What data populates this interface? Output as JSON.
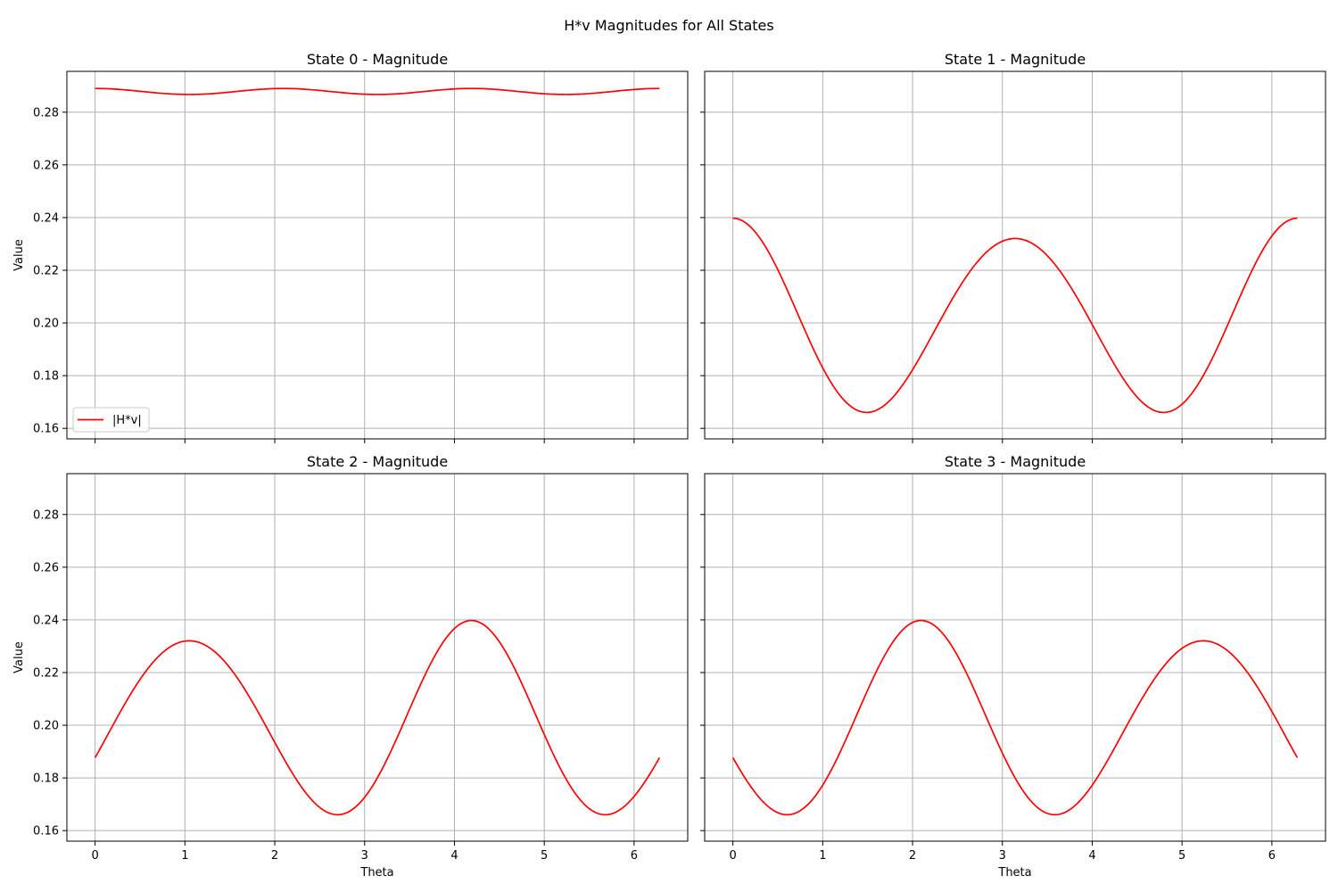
{
  "figure": {
    "title": "H*v Magnitudes for All States"
  },
  "chart_data": [
    {
      "type": "line",
      "title": "State 0 - Magnitude",
      "xlabel": "",
      "ylabel": "Value",
      "xlim": [
        -0.314,
        6.597
      ],
      "ylim": [
        0.156,
        0.2955
      ],
      "xticks": [
        0,
        1,
        2,
        3,
        4,
        5,
        6
      ],
      "yticks": [
        0.16,
        0.18,
        0.2,
        0.22,
        0.24,
        0.26,
        0.28
      ],
      "grid": true,
      "legend": {
        "show": true,
        "placement": "lower-left"
      },
      "series": [
        {
          "name": "|H*v|",
          "color": "#ff0000",
          "formula": {
            "mean": 0.28786,
            "amp": 0.00114,
            "freq": 3,
            "phase": 0
          }
        }
      ]
    },
    {
      "type": "line",
      "title": "State 1 - Magnitude",
      "xlabel": "",
      "ylabel": "",
      "xlim": [
        -0.314,
        6.597
      ],
      "ylim": [
        0.156,
        0.2955
      ],
      "xticks": [
        0,
        1,
        2,
        3,
        4,
        5,
        6
      ],
      "yticks": [
        0.16,
        0.18,
        0.2,
        0.22,
        0.24,
        0.26,
        0.28
      ],
      "grid": true,
      "legend": {
        "show": false
      },
      "series": [
        {
          "color": "#ff0000",
          "formula": {
            "mean": 0.2012,
            "amp": 0.0347,
            "freq": 2,
            "phase": 0,
            "amp3": 0.00385
          }
        }
      ]
    },
    {
      "type": "line",
      "title": "State 2 - Magnitude",
      "xlabel": "Theta",
      "ylabel": "Value",
      "xlim": [
        -0.314,
        6.597
      ],
      "ylim": [
        0.156,
        0.2955
      ],
      "xticks": [
        0,
        1,
        2,
        3,
        4,
        5,
        6
      ],
      "yticks": [
        0.16,
        0.18,
        0.2,
        0.22,
        0.24,
        0.26,
        0.28
      ],
      "grid": true,
      "legend": {
        "show": false
      },
      "series": [
        {
          "color": "#ff0000",
          "formula": {
            "mean": 0.2012,
            "amp": 0.0347,
            "freq": 2,
            "phase": -2.0944,
            "amp3": 0.00385
          }
        }
      ]
    },
    {
      "type": "line",
      "title": "State 3 - Magnitude",
      "xlabel": "Theta",
      "ylabel": "",
      "xlim": [
        -0.314,
        6.597
      ],
      "ylim": [
        0.156,
        0.2955
      ],
      "xticks": [
        0,
        1,
        2,
        3,
        4,
        5,
        6
      ],
      "yticks": [
        0.16,
        0.18,
        0.2,
        0.22,
        0.24,
        0.26,
        0.28
      ],
      "grid": true,
      "legend": {
        "show": false
      },
      "series": [
        {
          "color": "#ff0000",
          "formula": {
            "mean": 0.2012,
            "amp": 0.0347,
            "freq": 2,
            "phase": -4.18879,
            "amp3": 0.00385
          }
        }
      ]
    }
  ]
}
